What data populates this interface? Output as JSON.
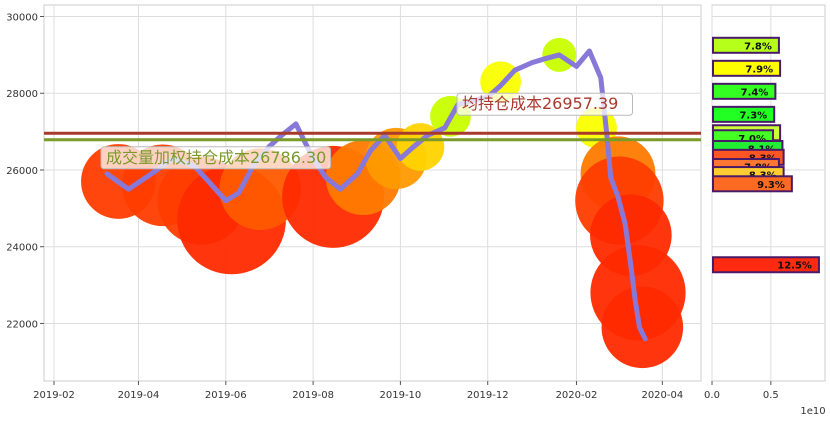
{
  "chart_data": [
    {
      "type": "line",
      "x_ticks": [
        "2019-02",
        "2019-04",
        "2019-06",
        "2019-08",
        "2019-10",
        "2019-12",
        "2020-02",
        "2020-04"
      ],
      "y_ticks": [
        22000,
        24000,
        26000,
        28000,
        30000
      ],
      "xlim": [
        "2019-01-25",
        "2020-04-28"
      ],
      "ylim": [
        20500,
        30300
      ],
      "grid": true,
      "series": [
        {
          "color": "#8878d8",
          "points": [
            [
              "2019-03-10",
              25900
            ],
            [
              "2019-03-25",
              25500
            ],
            [
              "2019-04-10",
              25900
            ],
            [
              "2019-04-25",
              26300
            ],
            [
              "2019-05-10",
              26100
            ],
            [
              "2019-05-20",
              25700
            ],
            [
              "2019-06-01",
              25200
            ],
            [
              "2019-06-10",
              25400
            ],
            [
              "2019-06-20",
              26100
            ],
            [
              "2019-07-01",
              26600
            ],
            [
              "2019-07-10",
              26900
            ],
            [
              "2019-07-20",
              27200
            ],
            [
              "2019-08-01",
              26300
            ],
            [
              "2019-08-10",
              25800
            ],
            [
              "2019-08-20",
              25500
            ],
            [
              "2019-09-01",
              25900
            ],
            [
              "2019-09-10",
              26500
            ],
            [
              "2019-09-20",
              26900
            ],
            [
              "2019-10-01",
              26300
            ],
            [
              "2019-10-10",
              26600
            ],
            [
              "2019-10-20",
              26900
            ],
            [
              "2019-11-01",
              27100
            ],
            [
              "2019-11-10",
              27700
            ],
            [
              "2019-11-20",
              27800
            ],
            [
              "2019-12-01",
              27900
            ],
            [
              "2019-12-10",
              28200
            ],
            [
              "2019-12-20",
              28600
            ],
            [
              "2020-01-01",
              28800
            ],
            [
              "2020-01-10",
              28900
            ],
            [
              "2020-01-20",
              29000
            ],
            [
              "2020-02-01",
              28700
            ],
            [
              "2020-02-10",
              29100
            ],
            [
              "2020-02-18",
              28400
            ],
            [
              "2020-02-22",
              27000
            ],
            [
              "2020-02-25",
              25800
            ],
            [
              "2020-03-01",
              25300
            ],
            [
              "2020-03-06",
              24600
            ],
            [
              "2020-03-10",
              23500
            ],
            [
              "2020-03-13",
              22600
            ],
            [
              "2020-03-16",
              21900
            ],
            [
              "2020-03-20",
              21600
            ]
          ]
        }
      ],
      "reference_lines": [
        {
          "value": 26957.39,
          "label": "均持仓成本26957.39",
          "color": "#a83a2c"
        },
        {
          "value": 26786.3,
          "label": "成交量加权持仓成本26786.30",
          "color": "#7a9a2a"
        }
      ],
      "bubbles": [
        {
          "date": "2019-03-18",
          "value": 25700,
          "size": 1.1,
          "color": "#ff3d00"
        },
        {
          "date": "2019-04-18",
          "value": 25600,
          "size": 1.2,
          "color": "#ff3d00"
        },
        {
          "date": "2019-05-15",
          "value": 25200,
          "size": 1.3,
          "color": "#ff3d00"
        },
        {
          "date": "2019-06-05",
          "value": 24700,
          "size": 1.6,
          "color": "#ff2a00"
        },
        {
          "date": "2019-06-25",
          "value": 25500,
          "size": 1.2,
          "color": "#ff5a00"
        },
        {
          "date": "2019-08-15",
          "value": 25300,
          "size": 1.5,
          "color": "#ff2a00"
        },
        {
          "date": "2019-09-05",
          "value": 25800,
          "size": 1.1,
          "color": "#ff7a00"
        },
        {
          "date": "2019-09-28",
          "value": 26300,
          "size": 0.9,
          "color": "#ff9a00"
        },
        {
          "date": "2019-10-15",
          "value": 26600,
          "size": 0.7,
          "color": "#ffd400"
        },
        {
          "date": "2019-11-05",
          "value": 27400,
          "size": 0.6,
          "color": "#c8ff00"
        },
        {
          "date": "2019-12-10",
          "value": 28300,
          "size": 0.6,
          "color": "#faff00"
        },
        {
          "date": "2020-01-20",
          "value": 29000,
          "size": 0.5,
          "color": "#c8ff00"
        },
        {
          "date": "2020-02-15",
          "value": 27100,
          "size": 0.6,
          "color": "#faff00"
        },
        {
          "date": "2020-03-01",
          "value": 25900,
          "size": 1.1,
          "color": "#ff7a00"
        },
        {
          "date": "2020-03-02",
          "value": 25200,
          "size": 1.3,
          "color": "#ff3d00"
        },
        {
          "date": "2020-03-10",
          "value": 24300,
          "size": 1.2,
          "color": "#ff2a00"
        },
        {
          "date": "2020-03-15",
          "value": 22800,
          "size": 1.4,
          "color": "#ff2a00"
        },
        {
          "date": "2020-03-18",
          "value": 21900,
          "size": 1.2,
          "color": "#ff2a00"
        }
      ]
    },
    {
      "type": "bar",
      "orientation": "horizontal",
      "x_ticks": [
        "0.0",
        "0.5"
      ],
      "x_scale_label": "1e10",
      "xlim": [
        0,
        9600000000.0
      ],
      "bars": [
        {
          "price": 29250,
          "value": 5600000000.0,
          "label": "7.8%",
          "color": "#b6ff1a"
        },
        {
          "price": 28650,
          "value": 5700000000.0,
          "label": "7.9%",
          "color": "#ffff00"
        },
        {
          "price": 28050,
          "value": 5300000000.0,
          "label": "7.4%",
          "color": "#33ff22"
        },
        {
          "price": 27450,
          "value": 5200000000.0,
          "label": "7.3%",
          "color": "#22ff22"
        },
        {
          "price": 26970,
          "value": 5700000000.0,
          "label": "7.9%",
          "color": "#ccff33"
        },
        {
          "price": 26840,
          "value": 5100000000.0,
          "label": "7.0%",
          "color": "#44ff22"
        },
        {
          "price": 26560,
          "value": 5900000000.0,
          "label": "8.1%",
          "color": "#22ee33"
        },
        {
          "price": 26330,
          "value": 6000000000.0,
          "label": "8.3%",
          "color": "#ff5522"
        },
        {
          "price": 26090,
          "value": 5600000000.0,
          "label": "7.8%",
          "color": "#ff7733"
        },
        {
          "price": 25880,
          "value": 6000000000.0,
          "label": "8.3%",
          "color": "#ffcc33"
        },
        {
          "price": 25640,
          "value": 6700000000.0,
          "label": "9.3%",
          "color": "#ff6a22"
        },
        {
          "price": 23530,
          "value": 9000000000.0,
          "label": "12.5%",
          "color": "#ff2a11"
        }
      ]
    }
  ]
}
